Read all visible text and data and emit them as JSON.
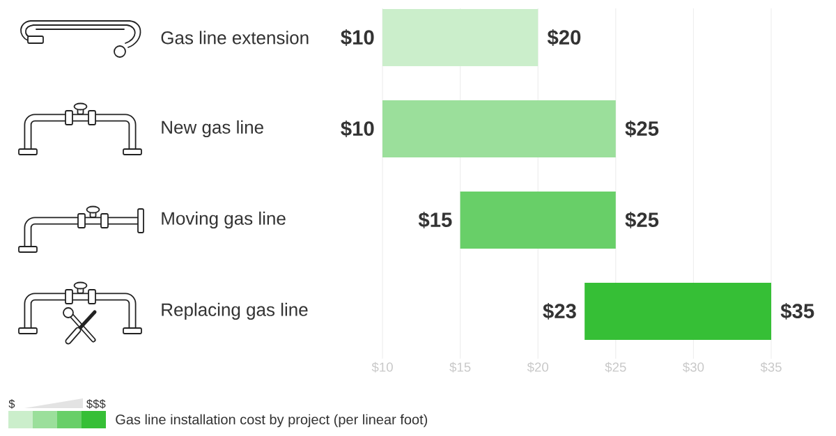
{
  "chart_data": {
    "type": "bar",
    "orientation": "horizontal",
    "categories": [
      "Gas line extension",
      "New gas line",
      "Moving gas line",
      "Replacing gas line"
    ],
    "base": [
      10,
      10,
      15,
      23
    ],
    "values": [
      10,
      15,
      10,
      12
    ],
    "colors": [
      "#cbeecb",
      "#9bdf9b",
      "#68cf68",
      "#36bf36"
    ],
    "value_labels": [
      "$20",
      "$25",
      "$25",
      "$35"
    ],
    "xlim": [
      10,
      35
    ],
    "xticks": [
      {
        "value": 10,
        "label": "$10"
      },
      {
        "value": 15,
        "label": "$15"
      },
      {
        "value": 20,
        "label": "$20"
      },
      {
        "value": 25,
        "label": "$25"
      },
      {
        "value": 30,
        "label": "$30"
      },
      {
        "value": 35,
        "label": "$35"
      }
    ],
    "grid": "x",
    "annotations": [
      {
        "text": "$10",
        "x": 10,
        "y": "Gas line extension"
      },
      {
        "text": "$10",
        "x": 10,
        "y": "New gas line"
      },
      {
        "text": "$15",
        "x": 15,
        "y": "Moving gas line"
      },
      {
        "text": "$23",
        "x": 23,
        "y": "Replacing gas line"
      },
      "$",
      "$$$",
      "Gas line installation cost by project (per linear foot)"
    ]
  }
}
